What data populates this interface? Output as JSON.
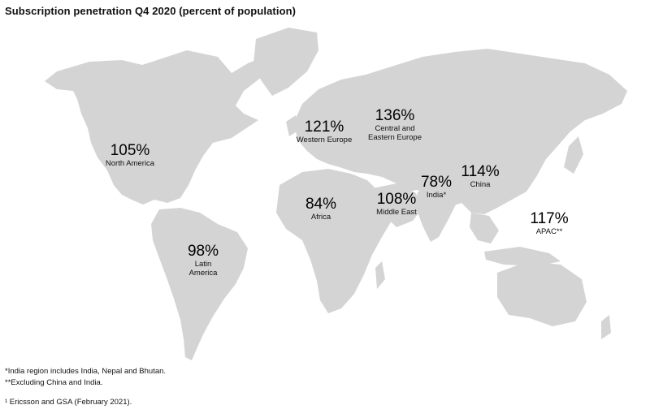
{
  "title": "Subscription penetration Q4 2020 (percent of population)",
  "regions": {
    "north_america": {
      "value": "105%",
      "name": "North America"
    },
    "latin_america": {
      "value": "98%",
      "name_line1": "Latin",
      "name_line2": "America"
    },
    "western_europe": {
      "value": "121%",
      "name": "Western Europe"
    },
    "central_eastern_europe": {
      "value": "136%",
      "name_line1": "Central and",
      "name_line2": "Eastern Europe"
    },
    "africa": {
      "value": "84%",
      "name": "Africa"
    },
    "middle_east": {
      "value": "108%",
      "name": "Middle East"
    },
    "india": {
      "value": "78%",
      "name": "India*"
    },
    "china": {
      "value": "114%",
      "name": "China"
    },
    "apac": {
      "value": "117%",
      "name": "APAC**"
    }
  },
  "footnotes": {
    "india_note": "*India region includes India, Nepal and Bhutan.",
    "apac_note": "**Excluding China and India.",
    "source": "¹ Ericsson and GSA (February 2021)."
  },
  "colors": {
    "land": "#d4d4d4",
    "background": "#ffffff"
  }
}
